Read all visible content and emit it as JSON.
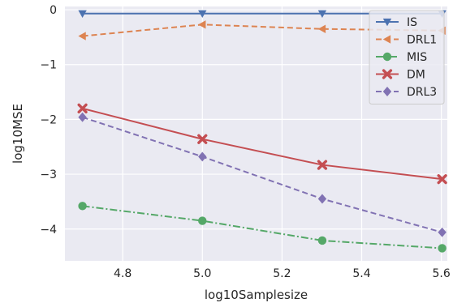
{
  "chart_data": {
    "type": "line",
    "title": "",
    "xlabel": "log10Samplesize",
    "ylabel": "log10MSE",
    "xlim": [
      4.655,
      5.615
    ],
    "ylim": [
      -4.58,
      0.06
    ],
    "x_ticks": [
      4.8,
      5.0,
      5.2,
      5.4,
      5.6
    ],
    "x_tick_labels": [
      "4.8",
      "5.0",
      "5.2",
      "5.4",
      "5.6"
    ],
    "y_ticks": [
      0,
      -1,
      -2,
      -3,
      -4
    ],
    "y_tick_labels": [
      "0",
      "−1",
      "−2",
      "−3",
      "−4"
    ],
    "grid": true,
    "background": "#eaeaf2",
    "legend_position": "top-right",
    "x": [
      4.699,
      5.0,
      5.301,
      5.602
    ],
    "series": [
      {
        "name": "IS",
        "values": [
          -0.07,
          -0.07,
          -0.07,
          -0.07
        ],
        "color": "#4c72b0",
        "dash": "solid",
        "marker": "triangle-down"
      },
      {
        "name": "DRL1",
        "values": [
          -0.48,
          -0.27,
          -0.35,
          -0.38
        ],
        "color": "#dd8452",
        "dash": "dashed",
        "marker": "triangle-left"
      },
      {
        "name": "MIS",
        "values": [
          -3.58,
          -3.85,
          -4.21,
          -4.35
        ],
        "color": "#55a868",
        "dash": "dashdot",
        "marker": "circle"
      },
      {
        "name": "DM",
        "values": [
          -1.8,
          -2.36,
          -2.83,
          -3.09
        ],
        "color": "#c44e52",
        "dash": "solid",
        "marker": "x"
      },
      {
        "name": "DRL3",
        "values": [
          -1.96,
          -2.68,
          -3.45,
          -4.06
        ],
        "color": "#8172b3",
        "dash": "dashed",
        "marker": "diamond"
      }
    ]
  }
}
